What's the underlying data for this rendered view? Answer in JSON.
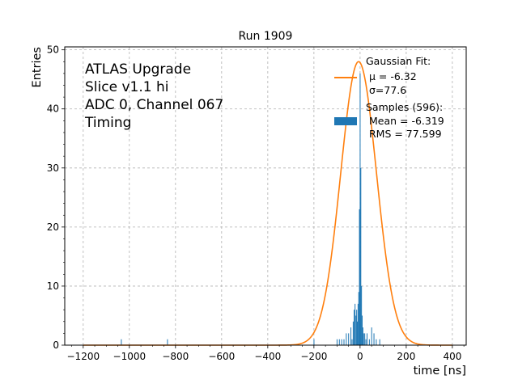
{
  "chart_data": {
    "type": "bar",
    "title": "Run 1909",
    "xlabel": "time [ns]",
    "ylabel": "Entries",
    "xlim": [
      -1280,
      460
    ],
    "ylim": [
      0,
      50.5
    ],
    "grid": true,
    "xticks": [
      -1200,
      -1000,
      -800,
      -600,
      -400,
      -200,
      0,
      200,
      400
    ],
    "yticks": [
      0,
      10,
      20,
      30,
      40,
      50
    ],
    "xtick_labels": [
      "−1200",
      "−1000",
      "−800",
      "−600",
      "−400",
      "−200",
      "0",
      "200",
      "400"
    ],
    "ytick_labels": [
      "0",
      "10",
      "20",
      "30",
      "40",
      "50"
    ],
    "annotation_lines": [
      "ATLAS Upgrade",
      "Slice v1.1 hi",
      "ADC 0, Channel 067",
      "Timing"
    ],
    "legend": {
      "placement": "top-right",
      "fit_lines": [
        "Gaussian Fit:",
        " μ = -6.32",
        " σ=77.6"
      ],
      "samples_lines": [
        "Samples (596):",
        " Mean = -6.319",
        " RMS = 77.599"
      ]
    },
    "colors": {
      "histogram": "#1f77b4",
      "fit": "#ff7f0e",
      "grid": "#b0b0b0"
    },
    "gaussian_fit": {
      "mu": -6.32,
      "sigma": 77.6,
      "amplitude": 48
    },
    "histogram": {
      "bin_width": 3,
      "bins": [
        {
          "x": -1035,
          "y": 1
        },
        {
          "x": -835,
          "y": 1
        },
        {
          "x": -200,
          "y": 1
        },
        {
          "x": -100,
          "y": 1
        },
        {
          "x": -90,
          "y": 1
        },
        {
          "x": -80,
          "y": 1
        },
        {
          "x": -70,
          "y": 1
        },
        {
          "x": -60,
          "y": 2
        },
        {
          "x": -50,
          "y": 2
        },
        {
          "x": -40,
          "y": 3
        },
        {
          "x": -35,
          "y": 1
        },
        {
          "x": -30,
          "y": 4
        },
        {
          "x": -26,
          "y": 6
        },
        {
          "x": -22,
          "y": 7
        },
        {
          "x": -18,
          "y": 5
        },
        {
          "x": -15,
          "y": 6
        },
        {
          "x": -12,
          "y": 4
        },
        {
          "x": -9,
          "y": 7
        },
        {
          "x": -6,
          "y": 9
        },
        {
          "x": -3,
          "y": 23
        },
        {
          "x": 0,
          "y": 46
        },
        {
          "x": 3,
          "y": 30
        },
        {
          "x": 6,
          "y": 10
        },
        {
          "x": 9,
          "y": 5
        },
        {
          "x": 12,
          "y": 3
        },
        {
          "x": 15,
          "y": 2
        },
        {
          "x": 20,
          "y": 2
        },
        {
          "x": 25,
          "y": 1
        },
        {
          "x": 30,
          "y": 2
        },
        {
          "x": 40,
          "y": 1
        },
        {
          "x": 50,
          "y": 3
        },
        {
          "x": 60,
          "y": 2
        },
        {
          "x": 70,
          "y": 1
        },
        {
          "x": 85,
          "y": 1
        }
      ]
    }
  }
}
